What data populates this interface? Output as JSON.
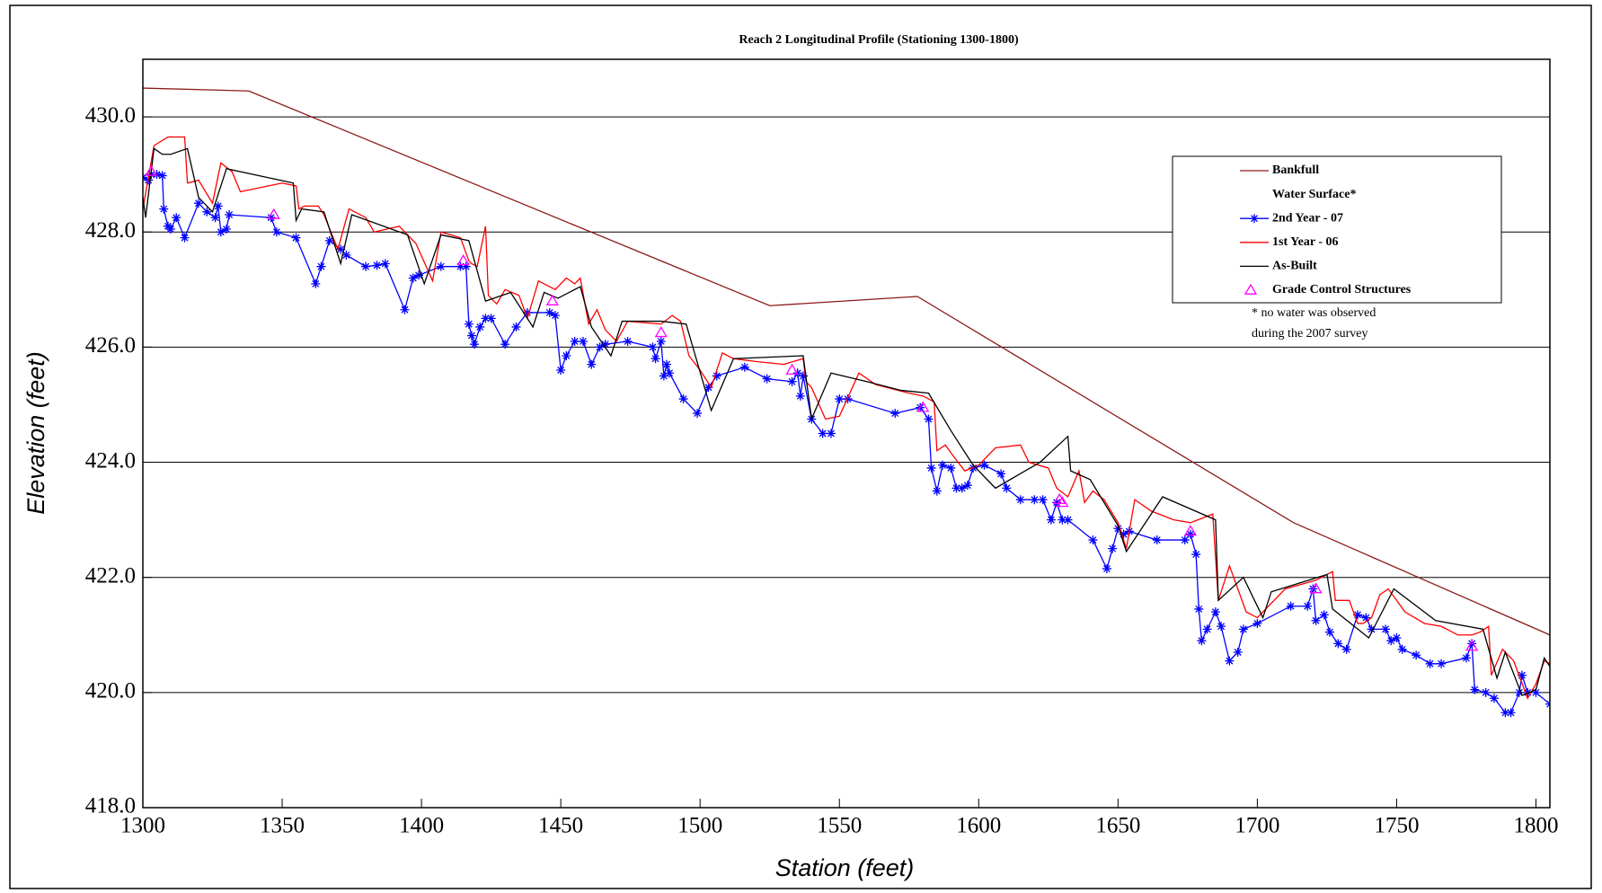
{
  "chart_data": {
    "type": "line",
    "title": "Reach 2 Longitudinal Profile (Stationing 1300-1800)",
    "x_label": "Station (feet)",
    "y_label": "Elevation (feet)",
    "xlim": [
      1300,
      1805
    ],
    "ylim": [
      418,
      431
    ],
    "xticks": [
      1300,
      1350,
      1400,
      1450,
      1500,
      1550,
      1600,
      1650,
      1700,
      1750,
      1800
    ],
    "yticks": [
      {
        "value": 418,
        "label": "418.0"
      },
      {
        "value": 420,
        "label": "420.0"
      },
      {
        "value": 422,
        "label": "422.0"
      },
      {
        "value": 424,
        "label": "424.0"
      },
      {
        "value": 426,
        "label": "426.0"
      },
      {
        "value": 428,
        "label": "428.0"
      },
      {
        "value": 430,
        "label": "430.0"
      }
    ],
    "grid": true,
    "legend_note": [
      "* no water was observed",
      "during the  2007 survey"
    ],
    "series": [
      {
        "name": "Bankfull",
        "color": "#8b1a1a",
        "marker": "none",
        "x": [
          1300,
          1338,
          1525,
          1578,
          1713,
          1805
        ],
        "values": [
          430.5,
          430.45,
          426.72,
          426.88,
          422.95,
          421.0
        ]
      },
      {
        "name": "Water Surface*",
        "marker": "none",
        "x": [],
        "values": []
      },
      {
        "name": "2nd Year - 07",
        "color": "#0000ff",
        "marker": "asterisk",
        "x": [
          1300,
          1302,
          1303,
          1305,
          1307,
          1307.5,
          1309,
          1310,
          1312,
          1315,
          1320,
          1323,
          1326,
          1327,
          1328,
          1330,
          1331,
          1346,
          1348,
          1355,
          1362,
          1364,
          1367,
          1371,
          1373,
          1380,
          1384,
          1387,
          1394,
          1397,
          1399,
          1407,
          1414,
          1416,
          1417,
          1418,
          1419,
          1421,
          1423,
          1425,
          1430,
          1434,
          1438,
          1446,
          1448,
          1450,
          1452,
          1455,
          1458,
          1461,
          1464,
          1466,
          1474,
          1483,
          1484,
          1486,
          1487,
          1488,
          1489,
          1494,
          1499,
          1503,
          1506,
          1516,
          1524,
          1533,
          1535,
          1536,
          1537,
          1540,
          1544,
          1547,
          1550,
          1553,
          1570,
          1579,
          1582,
          1583,
          1585,
          1587,
          1590,
          1592,
          1594,
          1596,
          1598,
          1602,
          1608,
          1610,
          1615,
          1620,
          1623,
          1626,
          1628,
          1630,
          1632,
          1641,
          1646,
          1648,
          1650,
          1652,
          1654,
          1664,
          1674,
          1676,
          1678,
          1679,
          1680,
          1682,
          1685,
          1687,
          1690,
          1693,
          1695,
          1700,
          1712,
          1718,
          1720,
          1721,
          1724,
          1726,
          1729,
          1732,
          1736,
          1739,
          1741,
          1746,
          1748,
          1750,
          1752,
          1757,
          1762,
          1766,
          1775,
          1777,
          1778,
          1782,
          1785,
          1789,
          1791,
          1794,
          1795,
          1797,
          1800,
          1805
        ],
        "values": [
          428.95,
          428.9,
          429.0,
          429.0,
          428.98,
          428.4,
          428.1,
          428.05,
          428.25,
          427.9,
          428.5,
          428.35,
          428.25,
          428.45,
          428.0,
          428.05,
          428.3,
          428.25,
          428.0,
          427.9,
          427.1,
          427.4,
          427.85,
          427.7,
          427.6,
          427.4,
          427.42,
          427.45,
          426.65,
          427.2,
          427.25,
          427.4,
          427.4,
          427.4,
          426.4,
          426.2,
          426.05,
          426.35,
          426.5,
          426.5,
          426.05,
          426.35,
          426.6,
          426.6,
          426.55,
          425.6,
          425.85,
          426.1,
          426.1,
          425.7,
          426.0,
          426.05,
          426.1,
          426.0,
          425.8,
          426.1,
          425.5,
          425.7,
          425.55,
          425.1,
          424.85,
          425.3,
          425.5,
          425.65,
          425.45,
          425.4,
          425.55,
          425.15,
          425.5,
          424.75,
          424.5,
          424.5,
          425.1,
          425.1,
          424.85,
          424.95,
          424.75,
          423.9,
          423.5,
          423.95,
          423.9,
          423.55,
          423.55,
          423.6,
          423.9,
          423.95,
          423.8,
          423.55,
          423.35,
          423.35,
          423.35,
          423.0,
          423.3,
          423.0,
          423.0,
          422.65,
          422.15,
          422.5,
          422.85,
          422.75,
          422.8,
          422.65,
          422.65,
          422.75,
          422.4,
          421.45,
          420.9,
          421.1,
          421.4,
          421.15,
          420.55,
          420.7,
          421.1,
          421.2,
          421.5,
          421.5,
          421.8,
          421.25,
          421.35,
          421.05,
          420.85,
          420.75,
          421.35,
          421.3,
          421.1,
          421.1,
          420.9,
          420.95,
          420.75,
          420.65,
          420.5,
          420.5,
          420.6,
          420.85,
          420.05,
          420.0,
          419.9,
          419.65,
          419.65,
          420.0,
          420.3,
          420.0,
          420.0,
          419.8
        ]
      },
      {
        "name": "1st Year - 06",
        "color": "#ff0000",
        "marker": "none",
        "x": [
          1300,
          1304,
          1309,
          1315,
          1316,
          1320,
          1325,
          1328,
          1332,
          1335,
          1350,
          1355,
          1356,
          1358,
          1363,
          1365,
          1370,
          1374,
          1380,
          1383,
          1392,
          1398,
          1404,
          1407,
          1414,
          1417,
          1418,
          1420,
          1423,
          1424,
          1427,
          1430,
          1435,
          1438,
          1442,
          1448,
          1452,
          1455,
          1457,
          1460,
          1463,
          1466,
          1470,
          1474,
          1486,
          1490,
          1493,
          1496,
          1500,
          1504,
          1508,
          1512,
          1520,
          1530,
          1537,
          1538,
          1540,
          1545,
          1550,
          1557,
          1563,
          1575,
          1580,
          1584,
          1585,
          1588,
          1591,
          1595,
          1600,
          1606,
          1615,
          1618,
          1625,
          1628,
          1632,
          1636,
          1638,
          1641,
          1645,
          1650,
          1653,
          1656,
          1662,
          1670,
          1676,
          1684,
          1686,
          1690,
          1696,
          1700,
          1710,
          1721,
          1727,
          1728,
          1733,
          1736,
          1738,
          1741,
          1744,
          1747,
          1753,
          1760,
          1766,
          1772,
          1777,
          1780,
          1783,
          1784,
          1788,
          1792,
          1797,
          1800,
          1803,
          1805
        ],
        "values": [
          428.4,
          429.5,
          429.65,
          429.65,
          428.85,
          428.9,
          428.5,
          429.2,
          429.05,
          428.7,
          428.85,
          428.8,
          428.4,
          428.45,
          428.45,
          428.3,
          427.7,
          428.4,
          428.25,
          428.0,
          428.1,
          427.8,
          427.15,
          428.0,
          427.9,
          427.5,
          427.45,
          427.4,
          428.1,
          426.9,
          426.75,
          427.0,
          426.9,
          426.5,
          427.15,
          427.0,
          427.2,
          427.1,
          427.2,
          426.4,
          426.65,
          426.3,
          426.1,
          426.45,
          426.4,
          426.55,
          426.45,
          425.85,
          425.6,
          425.3,
          425.9,
          425.8,
          425.75,
          425.7,
          425.8,
          425.4,
          425.3,
          424.75,
          424.8,
          425.55,
          425.35,
          425.2,
          425.15,
          425.05,
          424.2,
          424.3,
          424.1,
          423.85,
          423.95,
          424.25,
          424.3,
          424.0,
          423.9,
          423.55,
          423.4,
          423.85,
          423.3,
          423.5,
          423.35,
          422.95,
          422.5,
          423.35,
          423.15,
          423.0,
          422.95,
          423.1,
          421.6,
          422.2,
          421.4,
          421.3,
          421.8,
          421.95,
          422.1,
          421.6,
          421.6,
          421.2,
          421.2,
          421.3,
          421.7,
          421.8,
          421.4,
          421.2,
          421.15,
          421.0,
          421.0,
          421.05,
          421.15,
          420.3,
          420.75,
          420.55,
          419.9,
          420.15,
          420.55,
          420.5
        ]
      },
      {
        "name": "As-Built",
        "color": "#000000",
        "marker": "none",
        "x": [
          1300,
          1301,
          1304,
          1307,
          1310,
          1316,
          1320,
          1325,
          1330,
          1354,
          1355,
          1357,
          1365,
          1371,
          1375,
          1395,
          1401,
          1407,
          1417,
          1423,
          1432,
          1440,
          1444,
          1449,
          1457,
          1461,
          1468,
          1472,
          1486,
          1495,
          1504,
          1512,
          1537,
          1540,
          1547,
          1560,
          1572,
          1582,
          1590,
          1598,
          1606,
          1622,
          1632,
          1633,
          1640,
          1650,
          1653,
          1666,
          1685,
          1686,
          1695,
          1702,
          1705,
          1725,
          1727,
          1740,
          1749,
          1764,
          1781,
          1786,
          1789,
          1795,
          1800,
          1803,
          1805
        ],
        "values": [
          428.6,
          428.25,
          429.45,
          429.35,
          429.35,
          429.45,
          428.6,
          428.35,
          429.1,
          428.85,
          428.2,
          428.4,
          428.35,
          427.45,
          428.3,
          427.95,
          427.1,
          427.95,
          427.85,
          426.8,
          426.95,
          426.35,
          426.95,
          426.85,
          427.05,
          426.35,
          425.85,
          426.45,
          426.45,
          426.4,
          424.9,
          425.8,
          425.85,
          424.75,
          425.55,
          425.4,
          425.25,
          425.2,
          424.55,
          423.95,
          423.55,
          424.0,
          424.45,
          423.85,
          423.7,
          422.9,
          422.45,
          423.4,
          423.0,
          421.6,
          422.0,
          421.3,
          421.75,
          422.05,
          421.45,
          420.95,
          421.8,
          421.25,
          421.1,
          420.25,
          420.7,
          419.95,
          420.05,
          420.6,
          420.45
        ]
      },
      {
        "name": "Grade Control Structures",
        "color": "#ff00ff",
        "marker": "triangle",
        "line": false,
        "x": [
          1303,
          1347,
          1415,
          1447,
          1486,
          1533,
          1580,
          1629,
          1630,
          1676,
          1721,
          1777
        ],
        "values": [
          429.05,
          428.3,
          427.5,
          426.8,
          426.25,
          425.6,
          424.95,
          423.35,
          423.3,
          422.8,
          421.8,
          420.8
        ]
      }
    ]
  }
}
